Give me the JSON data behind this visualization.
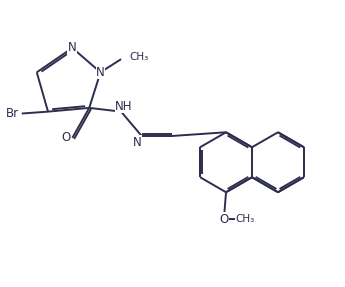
{
  "bg_color": "#ffffff",
  "line_color": "#2d2d4e",
  "line_width": 1.4,
  "font_size": 8.5,
  "figsize": [
    3.45,
    2.87
  ],
  "dpi": 100,
  "xlim": [
    0.5,
    9.5
  ],
  "ylim": [
    1.5,
    8.5
  ]
}
